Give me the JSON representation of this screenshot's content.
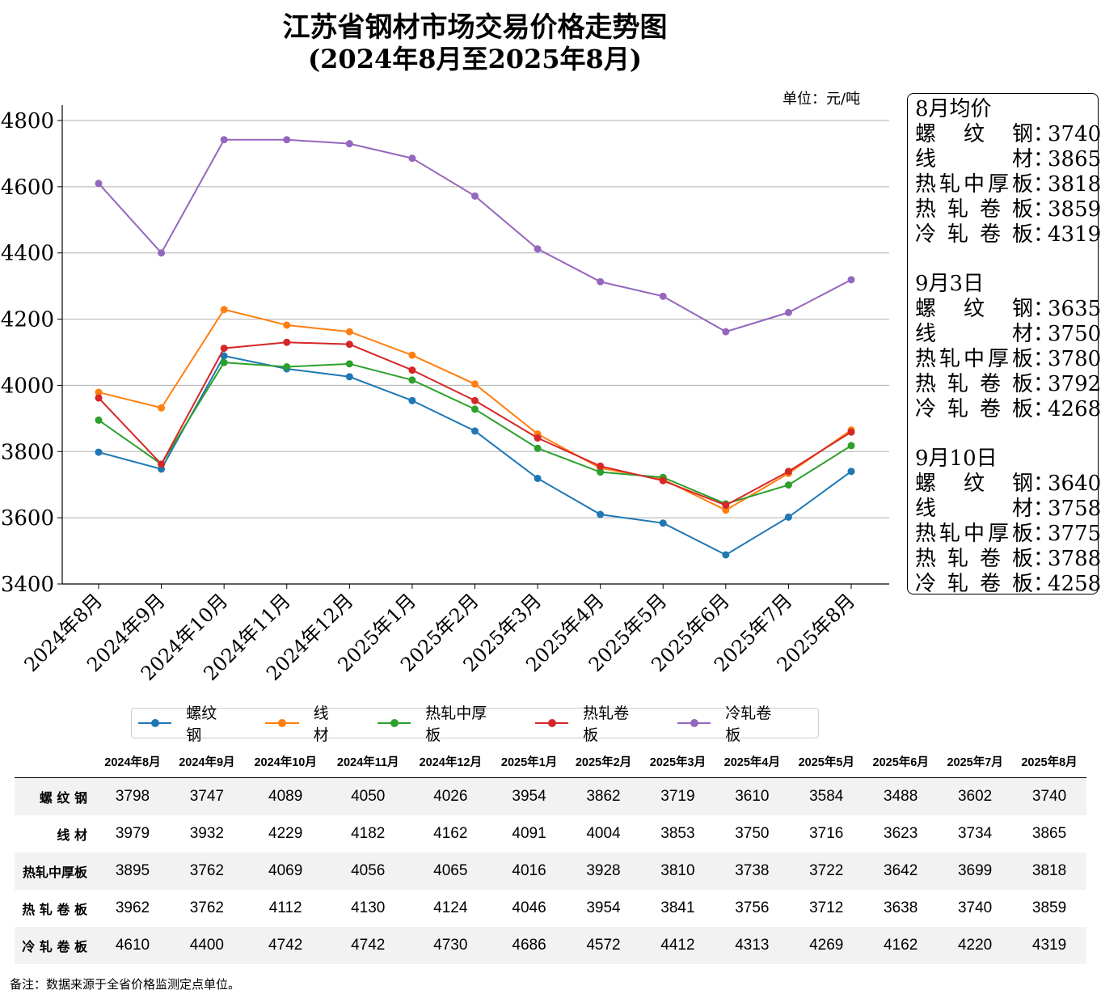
{
  "chart_data": {
    "type": "line",
    "title": "江苏省钢材市场交易价格走势图",
    "subtitle": "(2024年8月至2025年8月)",
    "unit_label": "单位：元/吨",
    "categories": [
      "2024年8月",
      "2024年9月",
      "2024年10月",
      "2024年11月",
      "2024年12月",
      "2025年1月",
      "2025年2月",
      "2025年3月",
      "2025年4月",
      "2025年5月",
      "2025年6月",
      "2025年7月",
      "2025年8月"
    ],
    "ylim": [
      3400,
      4800
    ],
    "yticks": [
      3400,
      3600,
      3800,
      4000,
      4200,
      4400,
      4600,
      4800
    ],
    "grid": "horizontal",
    "legend_position": "bottom",
    "series": [
      {
        "name": "螺纹钢",
        "color": "#1f77b4",
        "values": [
          3798,
          3747,
          4089,
          4050,
          4026,
          3954,
          3862,
          3719,
          3610,
          3584,
          3488,
          3602,
          3740
        ]
      },
      {
        "name": "线材",
        "color": "#ff7f0e",
        "values": [
          3979,
          3932,
          4229,
          4182,
          4162,
          4091,
          4004,
          3853,
          3750,
          3716,
          3623,
          3734,
          3865
        ]
      },
      {
        "name": "热轧中厚板",
        "color": "#2ca02c",
        "values": [
          3895,
          3762,
          4069,
          4056,
          4065,
          4016,
          3928,
          3810,
          3738,
          3722,
          3642,
          3699,
          3818
        ]
      },
      {
        "name": "热轧卷板",
        "color": "#d62728",
        "values": [
          3962,
          3762,
          4112,
          4130,
          4124,
          4046,
          3954,
          3841,
          3756,
          3712,
          3638,
          3740,
          3859
        ]
      },
      {
        "name": "冷轧卷板",
        "color": "#9467bd",
        "values": [
          4610,
          4400,
          4742,
          4742,
          4730,
          4686,
          4572,
          4412,
          4313,
          4269,
          4162,
          4220,
          4319
        ]
      }
    ]
  },
  "legend_labels": [
    "螺纹钢",
    "线材",
    "热轧中厚板",
    "热轧卷板",
    "冷轧卷板"
  ],
  "info_box": {
    "blocks": [
      {
        "heading": "8月均价",
        "rows": [
          {
            "name": "螺纹钢",
            "value": "3740"
          },
          {
            "name": "线材",
            "value": "3865"
          },
          {
            "name": "热轧中厚板",
            "value": "3818"
          },
          {
            "name": "热轧卷板",
            "value": "3859"
          },
          {
            "name": "冷轧卷板",
            "value": "4319"
          }
        ]
      },
      {
        "heading": "9月3日",
        "rows": [
          {
            "name": "螺纹钢",
            "value": "3635"
          },
          {
            "name": "线材",
            "value": "3750"
          },
          {
            "name": "热轧中厚板",
            "value": "3780"
          },
          {
            "name": "热轧卷板",
            "value": "3792"
          },
          {
            "name": "冷轧卷板",
            "value": "4268"
          }
        ]
      },
      {
        "heading": "9月10日",
        "rows": [
          {
            "name": "螺纹钢",
            "value": "3640"
          },
          {
            "name": "线材",
            "value": "3758"
          },
          {
            "name": "热轧中厚板",
            "value": "3775"
          },
          {
            "name": "热轧卷板",
            "value": "3788"
          },
          {
            "name": "冷轧卷板",
            "value": "4258"
          }
        ]
      }
    ]
  },
  "table": {
    "row_headers": [
      "螺 纹 钢",
      "线 材",
      "热轧中厚板",
      "热 轧 卷 板",
      "冷 轧 卷 板"
    ],
    "col_headers": [
      "2024年8月",
      "2024年9月",
      "2024年10月",
      "2024年11月",
      "2024年12月",
      "2025年1月",
      "2025年2月",
      "2025年3月",
      "2025年4月",
      "2025年5月",
      "2025年6月",
      "2025年7月",
      "2025年8月"
    ],
    "rows": [
      [
        3798,
        3747,
        4089,
        4050,
        4026,
        3954,
        3862,
        3719,
        3610,
        3584,
        3488,
        3602,
        3740
      ],
      [
        3979,
        3932,
        4229,
        4182,
        4162,
        4091,
        4004,
        3853,
        3750,
        3716,
        3623,
        3734,
        3865
      ],
      [
        3895,
        3762,
        4069,
        4056,
        4065,
        4016,
        3928,
        3810,
        3738,
        3722,
        3642,
        3699,
        3818
      ],
      [
        3962,
        3762,
        4112,
        4130,
        4124,
        4046,
        3954,
        3841,
        3756,
        3712,
        3638,
        3740,
        3859
      ],
      [
        4610,
        4400,
        4742,
        4742,
        4730,
        4686,
        4572,
        4412,
        4313,
        4269,
        4162,
        4220,
        4319
      ]
    ]
  },
  "note": "备注：数据来源于全省价格监测定点单位。"
}
